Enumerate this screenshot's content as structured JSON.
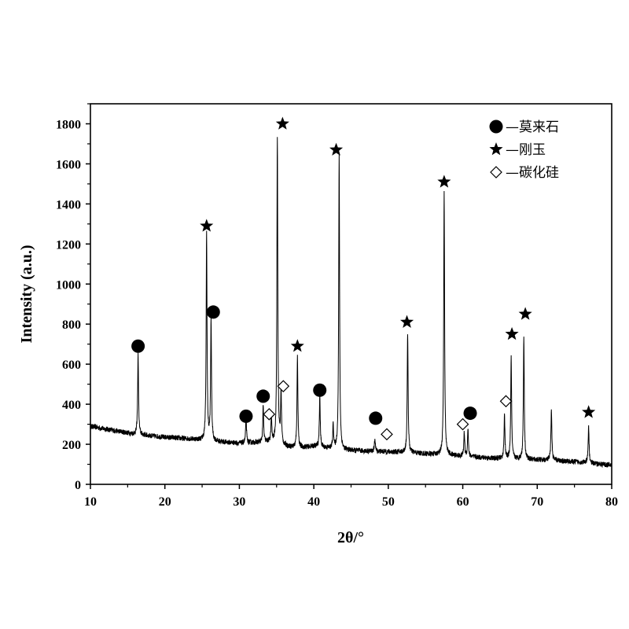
{
  "chart_data": {
    "type": "line",
    "xlabel": "2θ/°",
    "ylabel": "Intensity (a.u.)",
    "xlim": [
      10,
      80
    ],
    "ylim": [
      0,
      1900
    ],
    "x_ticks": [
      "10",
      "20",
      "30",
      "40",
      "50",
      "60",
      "70",
      "80"
    ],
    "y_ticks": [
      "0",
      "200",
      "400",
      "600",
      "800",
      "1000",
      "1200",
      "1400",
      "1600",
      "1800"
    ],
    "grid": false,
    "legend_position": "top-right",
    "legend": [
      {
        "marker": "circle",
        "label": "—莫来石"
      },
      {
        "marker": "star",
        "label": "—刚玉"
      },
      {
        "marker": "diamond",
        "label": "—碳化硅"
      }
    ],
    "background_points": [
      [
        10,
        290
      ],
      [
        13,
        270
      ],
      [
        16,
        250
      ],
      [
        20,
        235
      ],
      [
        24,
        225
      ],
      [
        26,
        215
      ],
      [
        30,
        205
      ],
      [
        34,
        210
      ],
      [
        36,
        190
      ],
      [
        38,
        180
      ],
      [
        40,
        190
      ],
      [
        44,
        170
      ],
      [
        48,
        165
      ],
      [
        52,
        160
      ],
      [
        56,
        150
      ],
      [
        60,
        140
      ],
      [
        64,
        130
      ],
      [
        68,
        125
      ],
      [
        72,
        120
      ],
      [
        76,
        110
      ],
      [
        80,
        95
      ]
    ],
    "peaks": [
      {
        "x": 16.4,
        "intensity": 650
      },
      {
        "x": 25.6,
        "intensity": 1260
      },
      {
        "x": 26.2,
        "intensity": 820
      },
      {
        "x": 30.9,
        "intensity": 330
      },
      {
        "x": 33.2,
        "intensity": 390
      },
      {
        "x": 34.3,
        "intensity": 330
      },
      {
        "x": 35.1,
        "intensity": 1740
      },
      {
        "x": 35.6,
        "intensity": 460
      },
      {
        "x": 37.8,
        "intensity": 640
      },
      {
        "x": 40.8,
        "intensity": 440
      },
      {
        "x": 42.6,
        "intensity": 300
      },
      {
        "x": 43.4,
        "intensity": 1640
      },
      {
        "x": 48.2,
        "intensity": 230
      },
      {
        "x": 52.6,
        "intensity": 760
      },
      {
        "x": 57.5,
        "intensity": 1460
      },
      {
        "x": 60.2,
        "intensity": 260
      },
      {
        "x": 60.7,
        "intensity": 280
      },
      {
        "x": 65.6,
        "intensity": 350
      },
      {
        "x": 66.5,
        "intensity": 640
      },
      {
        "x": 68.2,
        "intensity": 740
      },
      {
        "x": 71.9,
        "intensity": 380
      },
      {
        "x": 76.9,
        "intensity": 290
      }
    ],
    "markers": [
      {
        "type": "circle",
        "x": 16.4,
        "y": 690
      },
      {
        "type": "star",
        "x": 25.6,
        "y": 1290
      },
      {
        "type": "circle",
        "x": 26.5,
        "y": 860
      },
      {
        "type": "circle",
        "x": 30.9,
        "y": 340
      },
      {
        "type": "circle",
        "x": 33.2,
        "y": 440
      },
      {
        "type": "diamond",
        "x": 34.0,
        "y": 350
      },
      {
        "type": "star",
        "x": 35.8,
        "y": 1800
      },
      {
        "type": "diamond",
        "x": 35.9,
        "y": 490
      },
      {
        "type": "star",
        "x": 37.8,
        "y": 690
      },
      {
        "type": "circle",
        "x": 40.8,
        "y": 470
      },
      {
        "type": "star",
        "x": 43.0,
        "y": 1670
      },
      {
        "type": "circle",
        "x": 48.3,
        "y": 330
      },
      {
        "type": "diamond",
        "x": 49.8,
        "y": 250
      },
      {
        "type": "star",
        "x": 52.5,
        "y": 810
      },
      {
        "type": "star",
        "x": 57.5,
        "y": 1510
      },
      {
        "type": "diamond",
        "x": 60.0,
        "y": 300
      },
      {
        "type": "circle",
        "x": 61.0,
        "y": 355
      },
      {
        "type": "diamond",
        "x": 65.8,
        "y": 415
      },
      {
        "type": "star",
        "x": 66.6,
        "y": 750
      },
      {
        "type": "star",
        "x": 68.4,
        "y": 850
      },
      {
        "type": "star",
        "x": 76.9,
        "y": 360
      }
    ]
  }
}
